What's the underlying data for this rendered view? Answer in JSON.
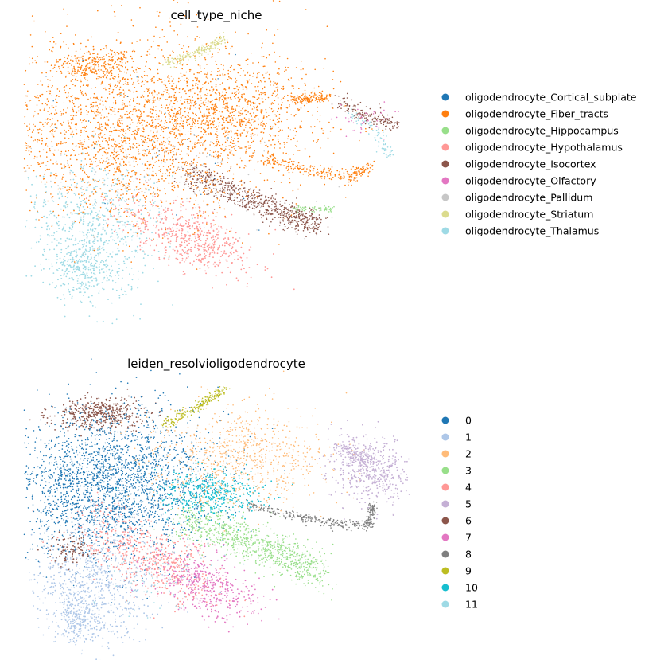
{
  "chart_data": [
    {
      "type": "scatter",
      "title": "cell_type_niche",
      "xlabel": "",
      "ylabel": "",
      "grid": false,
      "axes_visible": false,
      "legend_placement": "right",
      "legend": [
        {
          "name": "oligodendrocyte_Cortical_subplate",
          "color": "#1f77b4"
        },
        {
          "name": "oligodendrocyte_Fiber_tracts",
          "color": "#ff7f0e"
        },
        {
          "name": "oligodendrocyte_Hippocampus",
          "color": "#98df8a"
        },
        {
          "name": "oligodendrocyte_Hypothalamus",
          "color": "#ff9896"
        },
        {
          "name": "oligodendrocyte_Isocortex",
          "color": "#8c564b"
        },
        {
          "name": "oligodendrocyte_Olfactory",
          "color": "#e377c2"
        },
        {
          "name": "oligodendrocyte_Pallidum",
          "color": "#c7c7c7"
        },
        {
          "name": "oligodendrocyte_Striatum",
          "color": "#dbdb8d"
        },
        {
          "name": "oligodendrocyte_Thalamus",
          "color": "#9edae5"
        }
      ]
    },
    {
      "type": "scatter",
      "title": "leiden_resolvioligodendrocyte",
      "xlabel": "",
      "ylabel": "",
      "grid": false,
      "axes_visible": false,
      "legend_placement": "right",
      "legend": [
        {
          "name": "0",
          "color": "#1f77b4"
        },
        {
          "name": "1",
          "color": "#aec7e8"
        },
        {
          "name": "2",
          "color": "#ffbb78"
        },
        {
          "name": "3",
          "color": "#98df8a"
        },
        {
          "name": "4",
          "color": "#ff9896"
        },
        {
          "name": "5",
          "color": "#c5b0d5"
        },
        {
          "name": "6",
          "color": "#8c564b"
        },
        {
          "name": "7",
          "color": "#e377c2"
        },
        {
          "name": "8",
          "color": "#7f7f7f"
        },
        {
          "name": "9",
          "color": "#bcbd22"
        },
        {
          "name": "10",
          "color": "#17becf"
        },
        {
          "name": "11",
          "color": "#9edae5"
        }
      ]
    }
  ]
}
